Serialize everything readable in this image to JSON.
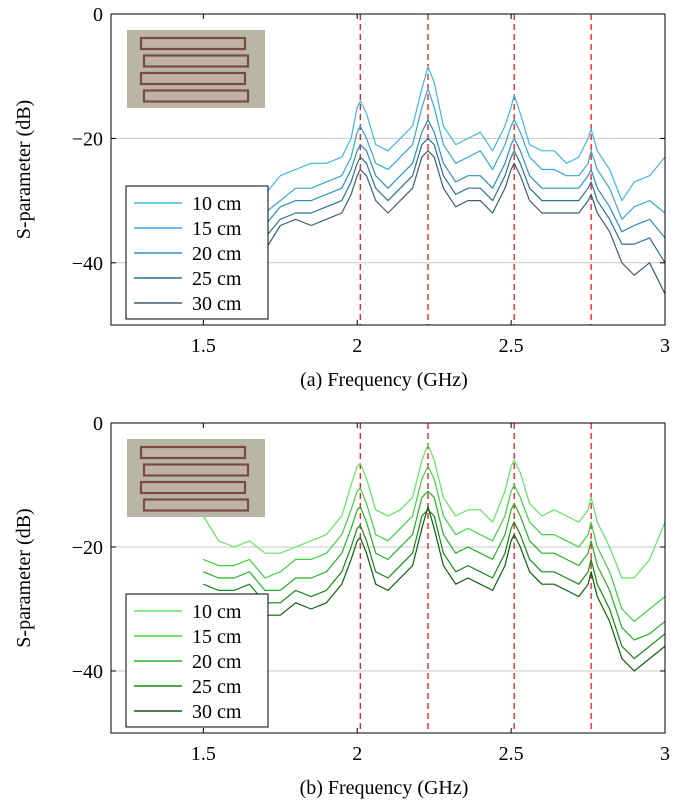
{
  "chart_data": [
    {
      "type": "line",
      "caption": "(a) Frequency (GHz)",
      "xlabel": "",
      "ylabel": "S-parameter (dB)",
      "xlim": [
        1.2,
        3.0
      ],
      "ylim": [
        -50,
        0
      ],
      "xticks": [
        1.5,
        2,
        2.5,
        3
      ],
      "xtick_labels": [
        "1.5",
        "2",
        "2.5",
        "3"
      ],
      "yticks": [
        0,
        -20,
        -40
      ],
      "ytick_labels": [
        "0",
        "−20",
        "−40"
      ],
      "grid": true,
      "legend_position": "bottom-left",
      "inset_image": "photo of four rectangular loop resonators (top-left)",
      "vlines": [
        2.01,
        2.23,
        2.51,
        2.76
      ],
      "vline_color": "#e41a1c",
      "series": [
        {
          "name": "10 cm",
          "color": "#3fb7e6",
          "x": [
            1.7,
            1.75,
            1.8,
            1.85,
            1.9,
            1.95,
            1.98,
            2.0,
            2.01,
            2.03,
            2.06,
            2.1,
            2.14,
            2.18,
            2.21,
            2.23,
            2.25,
            2.28,
            2.32,
            2.36,
            2.4,
            2.44,
            2.48,
            2.5,
            2.51,
            2.53,
            2.56,
            2.6,
            2.64,
            2.68,
            2.72,
            2.75,
            2.76,
            2.78,
            2.82,
            2.86,
            2.9,
            2.95,
            3.0
          ],
          "y": [
            -29,
            -26,
            -25,
            -24,
            -24,
            -23,
            -20,
            -15,
            -14,
            -16,
            -21,
            -22,
            -20,
            -18,
            -12,
            -8.5,
            -11,
            -18,
            -21,
            -20,
            -19,
            -22,
            -18,
            -15,
            -13,
            -16,
            -21,
            -22,
            -22,
            -24,
            -23,
            -20,
            -18.5,
            -22,
            -25,
            -30,
            -27,
            -26,
            -23
          ]
        },
        {
          "name": "15 cm",
          "color": "#33a8d6",
          "x": [
            1.7,
            1.75,
            1.8,
            1.85,
            1.9,
            1.95,
            1.98,
            2.0,
            2.01,
            2.03,
            2.06,
            2.1,
            2.14,
            2.18,
            2.21,
            2.23,
            2.25,
            2.28,
            2.32,
            2.36,
            2.4,
            2.44,
            2.48,
            2.5,
            2.51,
            2.53,
            2.56,
            2.6,
            2.64,
            2.68,
            2.72,
            2.75,
            2.76,
            2.78,
            2.82,
            2.86,
            2.9,
            2.95,
            3.0
          ],
          "y": [
            -32,
            -30,
            -28,
            -28,
            -27,
            -26,
            -23,
            -19,
            -18,
            -20,
            -24,
            -25,
            -23,
            -21,
            -15,
            -12,
            -15,
            -21,
            -24,
            -23,
            -22,
            -25,
            -21,
            -18,
            -17,
            -19,
            -23,
            -25,
            -25,
            -26,
            -26,
            -24,
            -22,
            -25,
            -28,
            -33,
            -31,
            -30,
            -32
          ]
        },
        {
          "name": "20 cm",
          "color": "#2b8fbb",
          "x": [
            1.7,
            1.75,
            1.8,
            1.85,
            1.9,
            1.95,
            1.98,
            2.0,
            2.01,
            2.03,
            2.06,
            2.1,
            2.14,
            2.18,
            2.21,
            2.23,
            2.25,
            2.28,
            2.32,
            2.36,
            2.4,
            2.44,
            2.48,
            2.5,
            2.51,
            2.53,
            2.56,
            2.6,
            2.64,
            2.68,
            2.72,
            2.75,
            2.76,
            2.78,
            2.82,
            2.86,
            2.9,
            2.95,
            3.0
          ],
          "y": [
            -34,
            -31,
            -30,
            -30,
            -29,
            -28,
            -25,
            -22,
            -21,
            -22,
            -26,
            -28,
            -26,
            -24,
            -19,
            -17,
            -19,
            -24,
            -27,
            -26,
            -26,
            -28,
            -24,
            -21,
            -20,
            -22,
            -26,
            -28,
            -28,
            -28,
            -28,
            -26,
            -25,
            -28,
            -31,
            -35,
            -34,
            -33,
            -36
          ]
        },
        {
          "name": "25 cm",
          "color": "#2a7394",
          "x": [
            1.7,
            1.75,
            1.8,
            1.85,
            1.9,
            1.95,
            1.98,
            2.0,
            2.01,
            2.03,
            2.06,
            2.1,
            2.14,
            2.18,
            2.21,
            2.23,
            2.25,
            2.28,
            2.32,
            2.36,
            2.4,
            2.44,
            2.48,
            2.5,
            2.51,
            2.53,
            2.56,
            2.6,
            2.64,
            2.68,
            2.72,
            2.75,
            2.76,
            2.78,
            2.82,
            2.86,
            2.9,
            2.95,
            3.0
          ],
          "y": [
            -36,
            -33,
            -32,
            -32,
            -31,
            -30,
            -27,
            -24,
            -23,
            -24,
            -28,
            -30,
            -28,
            -26,
            -21,
            -20,
            -21,
            -26,
            -29,
            -28,
            -28,
            -30,
            -26,
            -23,
            -22,
            -24,
            -28,
            -30,
            -30,
            -30,
            -30,
            -28,
            -27,
            -30,
            -33,
            -37,
            -37,
            -36,
            -40
          ]
        },
        {
          "name": "30 cm",
          "color": "#3b5e70",
          "x": [
            1.7,
            1.75,
            1.8,
            1.85,
            1.9,
            1.95,
            1.98,
            2.0,
            2.01,
            2.03,
            2.06,
            2.1,
            2.14,
            2.18,
            2.21,
            2.23,
            2.25,
            2.28,
            2.32,
            2.36,
            2.4,
            2.44,
            2.48,
            2.5,
            2.51,
            2.53,
            2.56,
            2.6,
            2.64,
            2.68,
            2.72,
            2.75,
            2.76,
            2.78,
            2.82,
            2.86,
            2.9,
            2.95,
            3.0
          ],
          "y": [
            -38,
            -34,
            -33,
            -34,
            -33,
            -32,
            -29,
            -26,
            -25,
            -26,
            -30,
            -32,
            -30,
            -28,
            -23,
            -22,
            -23,
            -28,
            -31,
            -30,
            -30,
            -32,
            -28,
            -25,
            -24,
            -26,
            -30,
            -32,
            -32,
            -32,
            -32,
            -30,
            -29,
            -32,
            -35,
            -40,
            -42,
            -40,
            -45
          ]
        }
      ]
    },
    {
      "type": "line",
      "caption": "(b) Frequency (GHz)",
      "xlabel": "",
      "ylabel": "S-parameter (dB)",
      "xlim": [
        1.2,
        3.0
      ],
      "ylim": [
        -50,
        0
      ],
      "xticks": [
        1.5,
        2,
        2.5,
        3
      ],
      "xtick_labels": [
        "1.5",
        "2",
        "2.5",
        "3"
      ],
      "yticks": [
        0,
        -20,
        -40
      ],
      "ytick_labels": [
        "0",
        "−20",
        "−40"
      ],
      "grid": true,
      "legend_position": "bottom-left",
      "inset_image": "photo of four rectangular loop resonators (top-left)",
      "vlines": [
        2.01,
        2.23,
        2.51,
        2.76
      ],
      "vline_color": "#e41a1c",
      "series": [
        {
          "name": "10 cm",
          "color": "#5ee65e",
          "x": [
            1.5,
            1.55,
            1.6,
            1.65,
            1.7,
            1.75,
            1.8,
            1.85,
            1.9,
            1.95,
            1.98,
            2.0,
            2.01,
            2.03,
            2.06,
            2.1,
            2.14,
            2.18,
            2.21,
            2.23,
            2.25,
            2.28,
            2.32,
            2.36,
            2.4,
            2.44,
            2.48,
            2.5,
            2.51,
            2.53,
            2.56,
            2.6,
            2.64,
            2.68,
            2.72,
            2.75,
            2.76,
            2.78,
            2.82,
            2.86,
            2.9,
            2.95,
            3.0
          ],
          "y": [
            -15,
            -19,
            -20,
            -19,
            -21,
            -21,
            -20,
            -19,
            -18,
            -15,
            -10,
            -7,
            -6.5,
            -9,
            -14,
            -15,
            -14,
            -12,
            -6,
            -3.5,
            -6,
            -12,
            -15,
            -14,
            -14,
            -16,
            -11,
            -7,
            -6,
            -8,
            -13,
            -15,
            -14,
            -15,
            -16,
            -14,
            -12,
            -16,
            -20,
            -25,
            -25,
            -22,
            -16
          ]
        },
        {
          "name": "15 cm",
          "color": "#3fd13f",
          "x": [
            1.5,
            1.55,
            1.6,
            1.65,
            1.7,
            1.75,
            1.8,
            1.85,
            1.9,
            1.95,
            1.98,
            2.0,
            2.01,
            2.03,
            2.06,
            2.1,
            2.14,
            2.18,
            2.21,
            2.23,
            2.25,
            2.28,
            2.32,
            2.36,
            2.4,
            2.44,
            2.48,
            2.5,
            2.51,
            2.53,
            2.56,
            2.6,
            2.64,
            2.68,
            2.72,
            2.75,
            2.76,
            2.78,
            2.82,
            2.86,
            2.9,
            2.95,
            3.0
          ],
          "y": [
            -22,
            -23,
            -23,
            -22,
            -25,
            -24,
            -22,
            -22,
            -21,
            -18,
            -14,
            -11,
            -10.5,
            -13,
            -18,
            -19,
            -17,
            -15,
            -9,
            -7,
            -9,
            -15,
            -18,
            -17,
            -18,
            -19,
            -15,
            -11,
            -10,
            -12,
            -16,
            -18,
            -18,
            -19,
            -20,
            -18,
            -16,
            -20,
            -24,
            -30,
            -32,
            -30,
            -28
          ]
        },
        {
          "name": "20 cm",
          "color": "#25b025",
          "x": [
            1.5,
            1.55,
            1.6,
            1.65,
            1.7,
            1.75,
            1.8,
            1.85,
            1.9,
            1.95,
            1.98,
            2.0,
            2.01,
            2.03,
            2.06,
            2.1,
            2.14,
            2.18,
            2.21,
            2.23,
            2.25,
            2.28,
            2.32,
            2.36,
            2.4,
            2.44,
            2.48,
            2.5,
            2.51,
            2.53,
            2.56,
            2.6,
            2.64,
            2.68,
            2.72,
            2.75,
            2.76,
            2.78,
            2.82,
            2.86,
            2.9,
            2.95,
            3.0
          ],
          "y": [
            -24,
            -25,
            -25,
            -24,
            -27,
            -27,
            -25,
            -25,
            -24,
            -21,
            -17,
            -14,
            -13.5,
            -16,
            -21,
            -22,
            -20,
            -18,
            -12,
            -11,
            -12,
            -18,
            -21,
            -20,
            -21,
            -22,
            -18,
            -14,
            -13,
            -15,
            -19,
            -21,
            -21,
            -22,
            -23,
            -21,
            -19,
            -23,
            -27,
            -33,
            -35,
            -34,
            -32
          ]
        },
        {
          "name": "25 cm",
          "color": "#148a14",
          "x": [
            1.5,
            1.55,
            1.6,
            1.65,
            1.7,
            1.75,
            1.8,
            1.85,
            1.9,
            1.95,
            1.98,
            2.0,
            2.01,
            2.03,
            2.06,
            2.1,
            2.14,
            2.18,
            2.21,
            2.23,
            2.25,
            2.28,
            2.32,
            2.36,
            2.4,
            2.44,
            2.48,
            2.5,
            2.51,
            2.53,
            2.56,
            2.6,
            2.64,
            2.68,
            2.72,
            2.75,
            2.76,
            2.78,
            2.82,
            2.86,
            2.9,
            2.95,
            3.0
          ],
          "y": [
            -26,
            -27,
            -27,
            -26,
            -29,
            -29,
            -27,
            -28,
            -27,
            -24,
            -20,
            -17,
            -16.5,
            -19,
            -24,
            -25,
            -23,
            -21,
            -15,
            -14,
            -15,
            -21,
            -24,
            -23,
            -24,
            -25,
            -21,
            -17,
            -16,
            -18,
            -22,
            -24,
            -24,
            -25,
            -26,
            -24,
            -22,
            -26,
            -30,
            -36,
            -38,
            -36,
            -34
          ]
        },
        {
          "name": "30 cm",
          "color": "#0b5e0b",
          "x": [
            1.5,
            1.55,
            1.6,
            1.65,
            1.7,
            1.75,
            1.8,
            1.85,
            1.9,
            1.95,
            1.98,
            2.0,
            2.01,
            2.03,
            2.06,
            2.1,
            2.14,
            2.18,
            2.21,
            2.23,
            2.25,
            2.28,
            2.32,
            2.36,
            2.4,
            2.44,
            2.48,
            2.5,
            2.51,
            2.53,
            2.56,
            2.6,
            2.64,
            2.68,
            2.72,
            2.75,
            2.76,
            2.78,
            2.82,
            2.86,
            2.9,
            2.95,
            3.0
          ],
          "y": [
            -28,
            -29,
            -29,
            -28,
            -31,
            -31,
            -29,
            -30,
            -29,
            -26,
            -22,
            -19,
            -18.5,
            -21,
            -26,
            -27,
            -25,
            -23,
            -17,
            -13.5,
            -17,
            -23,
            -26,
            -25,
            -26,
            -27,
            -23,
            -19,
            -18,
            -20,
            -24,
            -26,
            -26,
            -27,
            -28,
            -26,
            -24,
            -28,
            -32,
            -38,
            -40,
            -38,
            -36
          ]
        }
      ]
    }
  ]
}
